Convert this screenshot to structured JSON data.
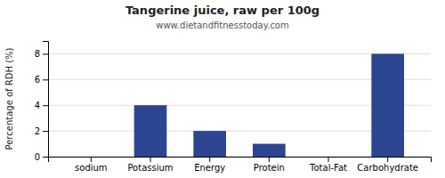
{
  "chart_data": {
    "type": "bar",
    "title": "Tangerine juice, raw per 100g",
    "subtitle": "www.dietandfitnesstoday.com",
    "categories": [
      "sodium",
      "Potassium",
      "Energy",
      "Protein",
      "Total-Fat",
      "Carbohydrate"
    ],
    "values": [
      0,
      4,
      2,
      1,
      0,
      8
    ],
    "color": "#2b4590",
    "ylabel": "Percentage of RDH (%)",
    "ylim": [
      0,
      9
    ],
    "yticks": [
      0,
      2,
      4,
      6,
      8
    ],
    "grid": true
  }
}
